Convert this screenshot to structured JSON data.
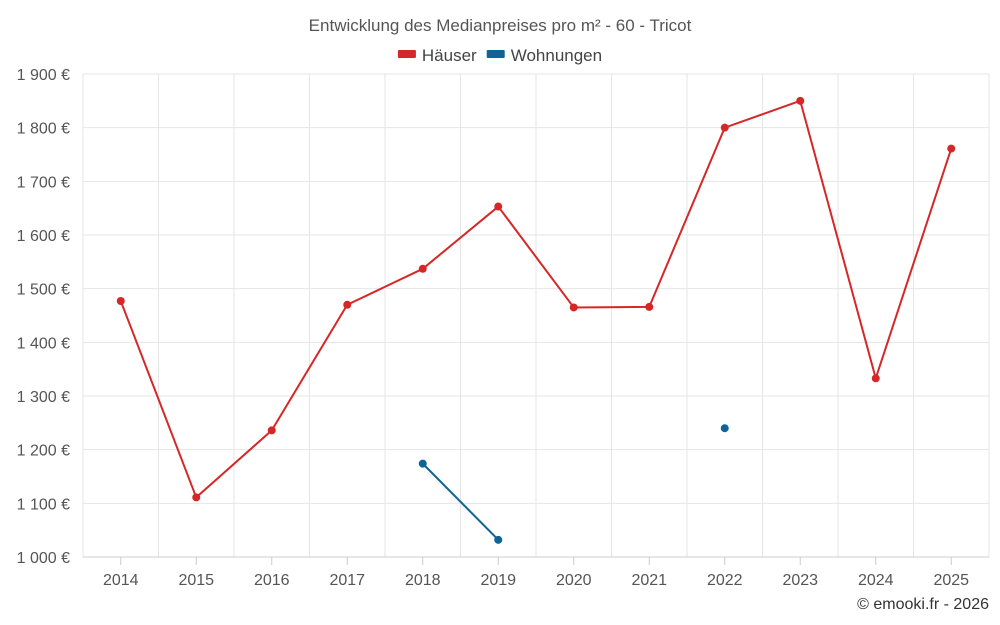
{
  "chart_data": {
    "type": "line",
    "title": "Entwicklung des Medianpreises pro m² - 60 - Tricot",
    "categories": [
      "2014",
      "2015",
      "2016",
      "2017",
      "2018",
      "2019",
      "2020",
      "2021",
      "2022",
      "2023",
      "2024",
      "2025"
    ],
    "series": [
      {
        "name": "Häuser",
        "color": "#d62728",
        "values": [
          1477,
          1111,
          1236,
          1470,
          1537,
          1653,
          1465,
          1466,
          1800,
          1850,
          1333,
          1761
        ]
      },
      {
        "name": "Wohnungen",
        "color": "#0c6497",
        "values": [
          null,
          null,
          null,
          null,
          1174,
          1032,
          null,
          null,
          1240,
          null,
          null,
          null
        ]
      }
    ],
    "ylim": [
      1000,
      1900
    ],
    "yticks": [
      1000,
      1100,
      1200,
      1300,
      1400,
      1500,
      1600,
      1700,
      1800,
      1900
    ],
    "ytick_labels": [
      "1 000 €",
      "1 100 €",
      "1 200 €",
      "1 300 €",
      "1 400 €",
      "1 500 €",
      "1 600 €",
      "1 700 €",
      "1 800 €",
      "1 900 €"
    ],
    "grid": true,
    "legend_position": "top-center"
  },
  "credit": "© emooki.fr - 2026"
}
